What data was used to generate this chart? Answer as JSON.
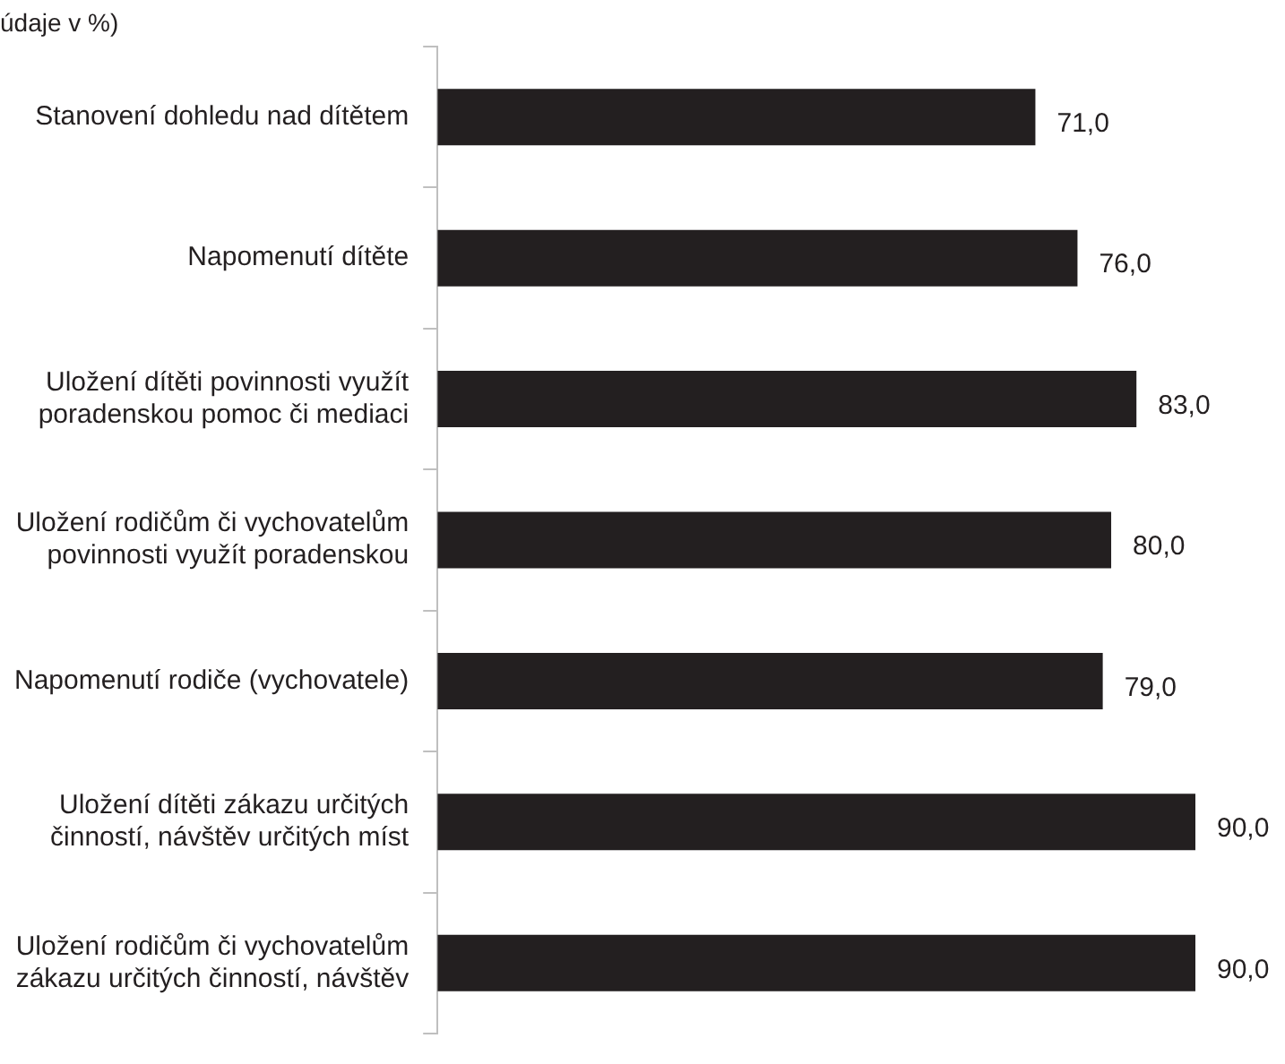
{
  "chart_data": {
    "type": "bar",
    "orientation": "horizontal",
    "title": "údaje v %)",
    "categories": [
      "Stanovení dohledu nad dítětem",
      "Napomenutí dítěte",
      "Uložení dítěti povinnosti využít poradenskou pomoc či mediaci",
      "Uložení rodičům či vychovatelům povinnosti využít poradenskou",
      "Napomenutí rodiče (vychovatele)",
      "Uložení dítěti zákazu určitých činností, návštěv určitých míst",
      "Uložení rodičům či vychovatelům zákazu určitých činností, návštěv"
    ],
    "series": [
      {
        "color": "#231f20",
        "values": [
          71,
          76,
          83,
          80,
          79,
          90,
          90
        ],
        "value_labels": [
          "71,0",
          "76,0",
          "83,0",
          "80,0",
          "79,0",
          "90,0",
          "90,0"
        ]
      }
    ],
    "legend": false
  }
}
